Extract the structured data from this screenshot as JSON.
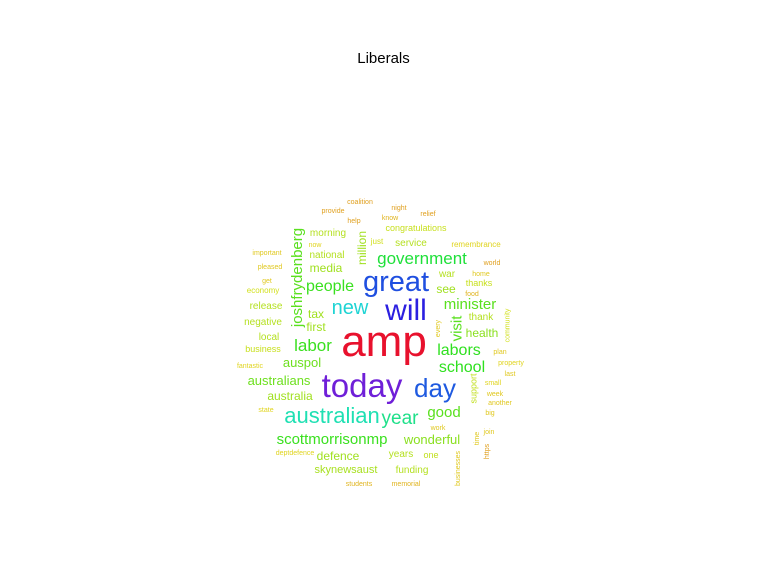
{
  "title": "Liberals",
  "words": [
    {
      "text": "amp",
      "color": "#e8112d",
      "size": 3,
      "vertical": false
    },
    {
      "text": "today",
      "color": "#6f1fd8",
      "size": 2.3,
      "vertical": false
    },
    {
      "text": "will",
      "color": "#2b1fe0",
      "size": 2.1,
      "vertical": false
    },
    {
      "text": "great",
      "color": "#1f4fe0",
      "size": 2,
      "vertical": false
    },
    {
      "text": "day",
      "color": "#1f5ae0",
      "size": 1.8,
      "vertical": false
    },
    {
      "text": "australian",
      "color": "#1fe0b3",
      "size": 1.5,
      "vertical": false
    },
    {
      "text": "new",
      "color": "#1fd4d4",
      "size": 1.4,
      "vertical": false
    },
    {
      "text": "year",
      "color": "#1fe08a",
      "size": 1.3,
      "vertical": false
    },
    {
      "text": "government",
      "color": "#1fe03a",
      "size": 1.2,
      "vertical": false
    },
    {
      "text": "labor",
      "color": "#3ae01f",
      "size": 1.2,
      "vertical": false
    },
    {
      "text": "people",
      "color": "#3ae01f",
      "size": 1.1,
      "vertical": false
    },
    {
      "text": "labors",
      "color": "#2fe01f",
      "size": 1.1,
      "vertical": false
    },
    {
      "text": "school",
      "color": "#2fe01f",
      "size": 1.1,
      "vertical": false
    },
    {
      "text": "scottmorrisonmp",
      "color": "#3ae01f",
      "size": 1.05,
      "vertical": false
    },
    {
      "text": "joshfrydenberg",
      "color": "#5ae01f",
      "size": 1,
      "vertical": true
    },
    {
      "text": "good",
      "color": "#5ae01f",
      "size": 1,
      "vertical": false
    },
    {
      "text": "minister",
      "color": "#5ae01f",
      "size": 1,
      "vertical": false
    },
    {
      "text": "visit",
      "color": "#5ae01f",
      "size": 1,
      "vertical": true
    },
    {
      "text": "auspol",
      "color": "#6ee01f",
      "size": 0.9,
      "vertical": false
    },
    {
      "text": "australians",
      "color": "#6ee01f",
      "size": 0.9,
      "vertical": false
    },
    {
      "text": "wonderful",
      "color": "#8ae01f",
      "size": 0.9,
      "vertical": false
    },
    {
      "text": "health",
      "color": "#8ae01f",
      "size": 0.85,
      "vertical": false
    },
    {
      "text": "defence",
      "color": "#a0e01f",
      "size": 0.8,
      "vertical": false
    },
    {
      "text": "australia",
      "color": "#a0e01f",
      "size": 0.8,
      "vertical": false
    },
    {
      "text": "first",
      "color": "#a0e01f",
      "size": 0.8,
      "vertical": false
    },
    {
      "text": "tax",
      "color": "#a0e01f",
      "size": 0.8,
      "vertical": false
    },
    {
      "text": "media",
      "color": "#a0e01f",
      "size": 0.8,
      "vertical": false
    },
    {
      "text": "million",
      "color": "#a0e01f",
      "size": 0.8,
      "vertical": true
    },
    {
      "text": "see",
      "color": "#a0e01f",
      "size": 0.8,
      "vertical": false
    },
    {
      "text": "skynewsaust",
      "color": "#a8e01f",
      "size": 0.75,
      "vertical": false
    },
    {
      "text": "years",
      "color": "#b4e01f",
      "size": 0.7,
      "vertical": false
    },
    {
      "text": "funding",
      "color": "#b4e01f",
      "size": 0.7,
      "vertical": false
    },
    {
      "text": "morning",
      "color": "#b4e01f",
      "size": 0.7,
      "vertical": false
    },
    {
      "text": "national",
      "color": "#b4e01f",
      "size": 0.7,
      "vertical": false
    },
    {
      "text": "negative",
      "color": "#b4e01f",
      "size": 0.7,
      "vertical": false
    },
    {
      "text": "release",
      "color": "#b4e01f",
      "size": 0.7,
      "vertical": false
    },
    {
      "text": "local",
      "color": "#b4e01f",
      "size": 0.7,
      "vertical": false
    },
    {
      "text": "war",
      "color": "#b4e01f",
      "size": 0.7,
      "vertical": false
    },
    {
      "text": "thank",
      "color": "#b4e01f",
      "size": 0.7,
      "vertical": false
    },
    {
      "text": "service",
      "color": "#b4e01f",
      "size": 0.7,
      "vertical": false
    },
    {
      "text": "support",
      "color": "#c2e01f",
      "size": 0.65,
      "vertical": true
    },
    {
      "text": "one",
      "color": "#c2e01f",
      "size": 0.65,
      "vertical": false
    },
    {
      "text": "business",
      "color": "#c8e01f",
      "size": 0.6,
      "vertical": false
    },
    {
      "text": "thanks",
      "color": "#c8e01f",
      "size": 0.6,
      "vertical": false
    },
    {
      "text": "congratulations",
      "color": "#c8e01f",
      "size": 0.6,
      "vertical": false
    },
    {
      "text": "economy",
      "color": "#d2e01f",
      "size": 0.55,
      "vertical": false
    },
    {
      "text": "remembrance",
      "color": "#e0d41f",
      "size": 0.55,
      "vertical": false
    },
    {
      "text": "just",
      "color": "#d2e01f",
      "size": 0.55,
      "vertical": false
    },
    {
      "text": "community",
      "color": "#d2e01f",
      "size": 0.5,
      "vertical": true
    },
    {
      "text": "now",
      "color": "#e0d41f",
      "size": 0.5,
      "vertical": false
    },
    {
      "text": "fantastic",
      "color": "#e0d41f",
      "size": 0.5,
      "vertical": false
    },
    {
      "text": "important",
      "color": "#e0c81f",
      "size": 0.5,
      "vertical": false
    },
    {
      "text": "pleased",
      "color": "#e0c81f",
      "size": 0.5,
      "vertical": false
    },
    {
      "text": "get",
      "color": "#e0c81f",
      "size": 0.45,
      "vertical": false
    },
    {
      "text": "state",
      "color": "#e0d41f",
      "size": 0.45,
      "vertical": false
    },
    {
      "text": "deptdefence",
      "color": "#e0d41f",
      "size": 0.45,
      "vertical": false
    },
    {
      "text": "students",
      "color": "#e0b41f",
      "size": 0.45,
      "vertical": false
    },
    {
      "text": "memorial",
      "color": "#e0b41f",
      "size": 0.45,
      "vertical": false
    },
    {
      "text": "businesses",
      "color": "#e0c81f",
      "size": 0.45,
      "vertical": true
    },
    {
      "text": "https",
      "color": "#e0a01f",
      "size": 0.45,
      "vertical": true
    },
    {
      "text": "time",
      "color": "#e0c81f",
      "size": 0.45,
      "vertical": true
    },
    {
      "text": "join",
      "color": "#e0c81f",
      "size": 0.45,
      "vertical": false
    },
    {
      "text": "work",
      "color": "#e0c81f",
      "size": 0.45,
      "vertical": false
    },
    {
      "text": "big",
      "color": "#e0c81f",
      "size": 0.45,
      "vertical": false
    },
    {
      "text": "another",
      "color": "#e0c81f",
      "size": 0.45,
      "vertical": false
    },
    {
      "text": "week",
      "color": "#e0c81f",
      "size": 0.45,
      "vertical": false
    },
    {
      "text": "small",
      "color": "#e0d41f",
      "size": 0.45,
      "vertical": false
    },
    {
      "text": "last",
      "color": "#e0c81f",
      "size": 0.45,
      "vertical": false
    },
    {
      "text": "property",
      "color": "#e0d41f",
      "size": 0.45,
      "vertical": false
    },
    {
      "text": "plan",
      "color": "#e0c81f",
      "size": 0.45,
      "vertical": false
    },
    {
      "text": "every",
      "color": "#e0c81f",
      "size": 0.45,
      "vertical": true
    },
    {
      "text": "food",
      "color": "#e0b41f",
      "size": 0.45,
      "vertical": false
    },
    {
      "text": "home",
      "color": "#e0c81f",
      "size": 0.45,
      "vertical": false
    },
    {
      "text": "world",
      "color": "#e0a01f",
      "size": 0.45,
      "vertical": false
    },
    {
      "text": "relief",
      "color": "#e0a01f",
      "size": 0.45,
      "vertical": false
    },
    {
      "text": "night",
      "color": "#e0a01f",
      "size": 0.45,
      "vertical": false
    },
    {
      "text": "know",
      "color": "#e0b41f",
      "size": 0.45,
      "vertical": false
    },
    {
      "text": "help",
      "color": "#e0a01f",
      "size": 0.45,
      "vertical": false
    },
    {
      "text": "provide",
      "color": "#e0a01f",
      "size": 0.45,
      "vertical": false
    },
    {
      "text": "coalition",
      "color": "#e0a01f",
      "size": 0.45,
      "vertical": false
    }
  ]
}
